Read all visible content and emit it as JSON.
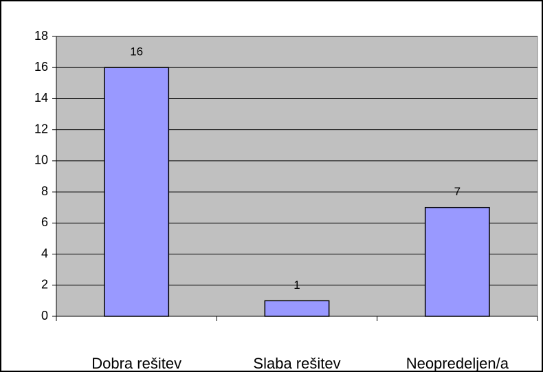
{
  "chart_data": {
    "type": "bar",
    "categories": [
      "Dobra rešitev",
      "Slaba rešitev",
      "Neopredeljen/a"
    ],
    "values": [
      16,
      1,
      7
    ],
    "color": "#9999ff",
    "ylim": [
      0,
      18
    ],
    "yticks": [
      0,
      2,
      4,
      6,
      8,
      10,
      12,
      14,
      16,
      18
    ],
    "grid": true
  }
}
